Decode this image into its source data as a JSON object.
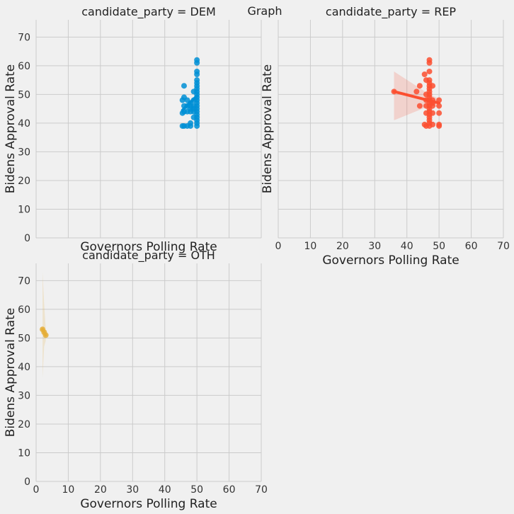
{
  "figure": {
    "suptitle": "Graph"
  },
  "colors": {
    "background": "#f0f0f0",
    "grid": "#cbcbcb",
    "dem": "#008fd5",
    "rep": "#fc4f30",
    "oth": "#e5ae38"
  },
  "chart_data": [
    {
      "type": "scatter",
      "title": "candidate_party = DEM",
      "xlabel": "Governors Polling Rate",
      "ylabel": "Bidens Approval Rate",
      "xlim": [
        0,
        70
      ],
      "ylim": [
        0,
        76
      ],
      "xticks": [
        "0",
        "10",
        "20",
        "30",
        "40",
        "50",
        "60",
        "70"
      ],
      "yticks": [
        "0",
        "10",
        "20",
        "30",
        "40",
        "50",
        "60",
        "70"
      ],
      "show_xticklabels": false,
      "show_yticklabels": true,
      "show_xlabel": true,
      "color": "#008fd5",
      "points": [
        [
          50,
          62
        ],
        [
          50,
          61
        ],
        [
          50,
          58
        ],
        [
          50,
          57
        ],
        [
          50,
          55
        ],
        [
          50,
          54
        ],
        [
          50,
          53
        ],
        [
          50,
          52
        ],
        [
          50,
          51
        ],
        [
          50,
          50
        ],
        [
          50,
          49
        ],
        [
          50,
          48
        ],
        [
          50,
          47
        ],
        [
          50,
          46
        ],
        [
          50,
          45
        ],
        [
          50,
          44
        ],
        [
          50,
          43
        ],
        [
          50,
          42
        ],
        [
          50,
          41
        ],
        [
          50,
          40
        ],
        [
          50,
          39
        ],
        [
          49,
          46
        ],
        [
          49,
          45
        ],
        [
          49,
          48
        ],
        [
          49,
          51
        ],
        [
          49,
          44
        ],
        [
          49,
          42
        ],
        [
          48,
          47
        ],
        [
          48,
          46
        ],
        [
          48,
          45
        ],
        [
          48,
          44
        ],
        [
          48,
          40
        ],
        [
          48,
          39
        ],
        [
          47,
          48
        ],
        [
          47,
          46
        ],
        [
          47,
          44
        ],
        [
          47,
          39
        ],
        [
          46,
          53
        ],
        [
          46,
          49
        ],
        [
          46,
          46
        ],
        [
          46,
          44
        ],
        [
          46,
          39
        ],
        [
          45.5,
          48
        ],
        [
          45.5,
          43.5
        ],
        [
          45.5,
          39
        ]
      ],
      "regression": {
        "x": [
          45.5,
          50
        ],
        "y": [
          44.5,
          49.5
        ]
      }
    },
    {
      "type": "scatter",
      "title": "candidate_party = REP",
      "xlabel": "Governors Polling Rate",
      "ylabel": "Bidens Approval Rate",
      "xlim": [
        0,
        70
      ],
      "ylim": [
        0,
        76
      ],
      "xticks": [
        "0",
        "10",
        "20",
        "30",
        "40",
        "50",
        "60",
        "70"
      ],
      "yticks": [
        "0",
        "10",
        "20",
        "30",
        "40",
        "50",
        "60",
        "70"
      ],
      "show_xticklabels": true,
      "show_yticklabels": false,
      "show_xlabel": true,
      "color": "#fc4f30",
      "points": [
        [
          47,
          62
        ],
        [
          47,
          61
        ],
        [
          47,
          58
        ],
        [
          47,
          55
        ],
        [
          47,
          54
        ],
        [
          47,
          53
        ],
        [
          47,
          52
        ],
        [
          47,
          51
        ],
        [
          47,
          50
        ],
        [
          47,
          49
        ],
        [
          47,
          48
        ],
        [
          47,
          47
        ],
        [
          47,
          46
        ],
        [
          47,
          45
        ],
        [
          47,
          44
        ],
        [
          47,
          43
        ],
        [
          47,
          42
        ],
        [
          47,
          41
        ],
        [
          47,
          40
        ],
        [
          47,
          39
        ],
        [
          48,
          53
        ],
        [
          48,
          48
        ],
        [
          48,
          47
        ],
        [
          48,
          46
        ],
        [
          48,
          43.5
        ],
        [
          48,
          39.5
        ],
        [
          50,
          48
        ],
        [
          50,
          46
        ],
        [
          50,
          43.5
        ],
        [
          50,
          39.5
        ],
        [
          50,
          39
        ],
        [
          46,
          55
        ],
        [
          46,
          50
        ],
        [
          46,
          48
        ],
        [
          46,
          46
        ],
        [
          46,
          43.5
        ],
        [
          46,
          39
        ],
        [
          45.5,
          57
        ],
        [
          45.5,
          39.5
        ],
        [
          44,
          53
        ],
        [
          44,
          46
        ],
        [
          43,
          51
        ],
        [
          36,
          51
        ]
      ],
      "regression": {
        "x": [
          36,
          50
        ],
        "y": [
          51,
          47
        ]
      },
      "band": {
        "x": [
          36,
          47,
          50
        ],
        "upper": [
          58,
          50,
          48.5
        ],
        "lower": [
          41,
          46,
          45.5
        ]
      }
    },
    {
      "type": "scatter",
      "title": "candidate_party = OTH",
      "xlabel": "Governors Polling Rate",
      "ylabel": "Bidens Approval Rate",
      "xlim": [
        0,
        70
      ],
      "ylim": [
        0,
        76
      ],
      "xticks": [
        "0",
        "10",
        "20",
        "30",
        "40",
        "50",
        "60",
        "70"
      ],
      "yticks": [
        "0",
        "10",
        "20",
        "30",
        "40",
        "50",
        "60",
        "70"
      ],
      "show_xticklabels": true,
      "show_yticklabels": true,
      "show_xlabel": true,
      "color": "#e5ae38",
      "points": [
        [
          2,
          53
        ],
        [
          2.5,
          52
        ],
        [
          3,
          51
        ]
      ],
      "regression": {
        "x": [
          2,
          3
        ],
        "y": [
          53,
          51
        ]
      },
      "band": {
        "x": [
          2,
          2.5,
          3
        ],
        "upper": [
          73,
          62,
          53
        ],
        "lower": [
          36,
          47,
          49
        ]
      }
    }
  ]
}
